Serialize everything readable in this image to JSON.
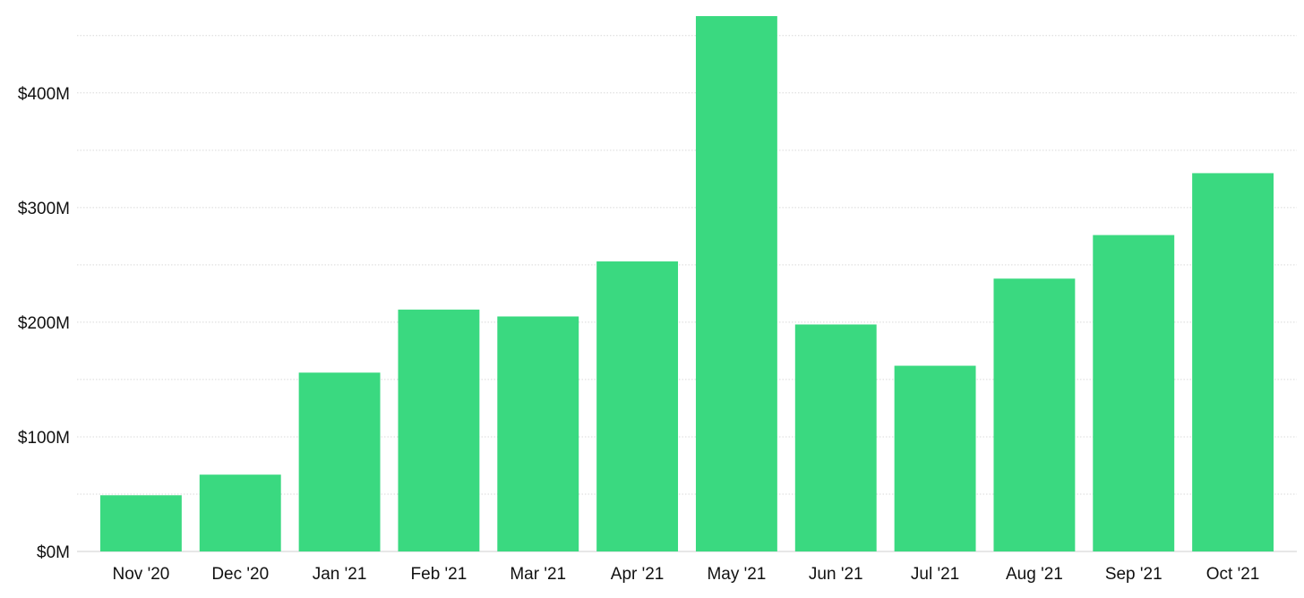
{
  "chart_data": {
    "type": "bar",
    "title": "",
    "xlabel": "",
    "ylabel": "",
    "categories": [
      "Nov '20",
      "Dec '20",
      "Jan '21",
      "Feb '21",
      "Mar '21",
      "Apr '21",
      "May '21",
      "Jun '21",
      "Jul '21",
      "Aug '21",
      "Sep '21",
      "Oct '21"
    ],
    "values": [
      49,
      67,
      156,
      211,
      205,
      253,
      467,
      198,
      162,
      238,
      276,
      330
    ],
    "value_unit": "$M",
    "ylim": [
      0,
      467
    ],
    "yticks": [
      0,
      100,
      200,
      300,
      400
    ],
    "ytick_labels": [
      "$0M",
      "$100M",
      "$200M",
      "$300M",
      "$400M"
    ],
    "grid": true,
    "legend": "none",
    "bar_color": "#3ad980"
  }
}
